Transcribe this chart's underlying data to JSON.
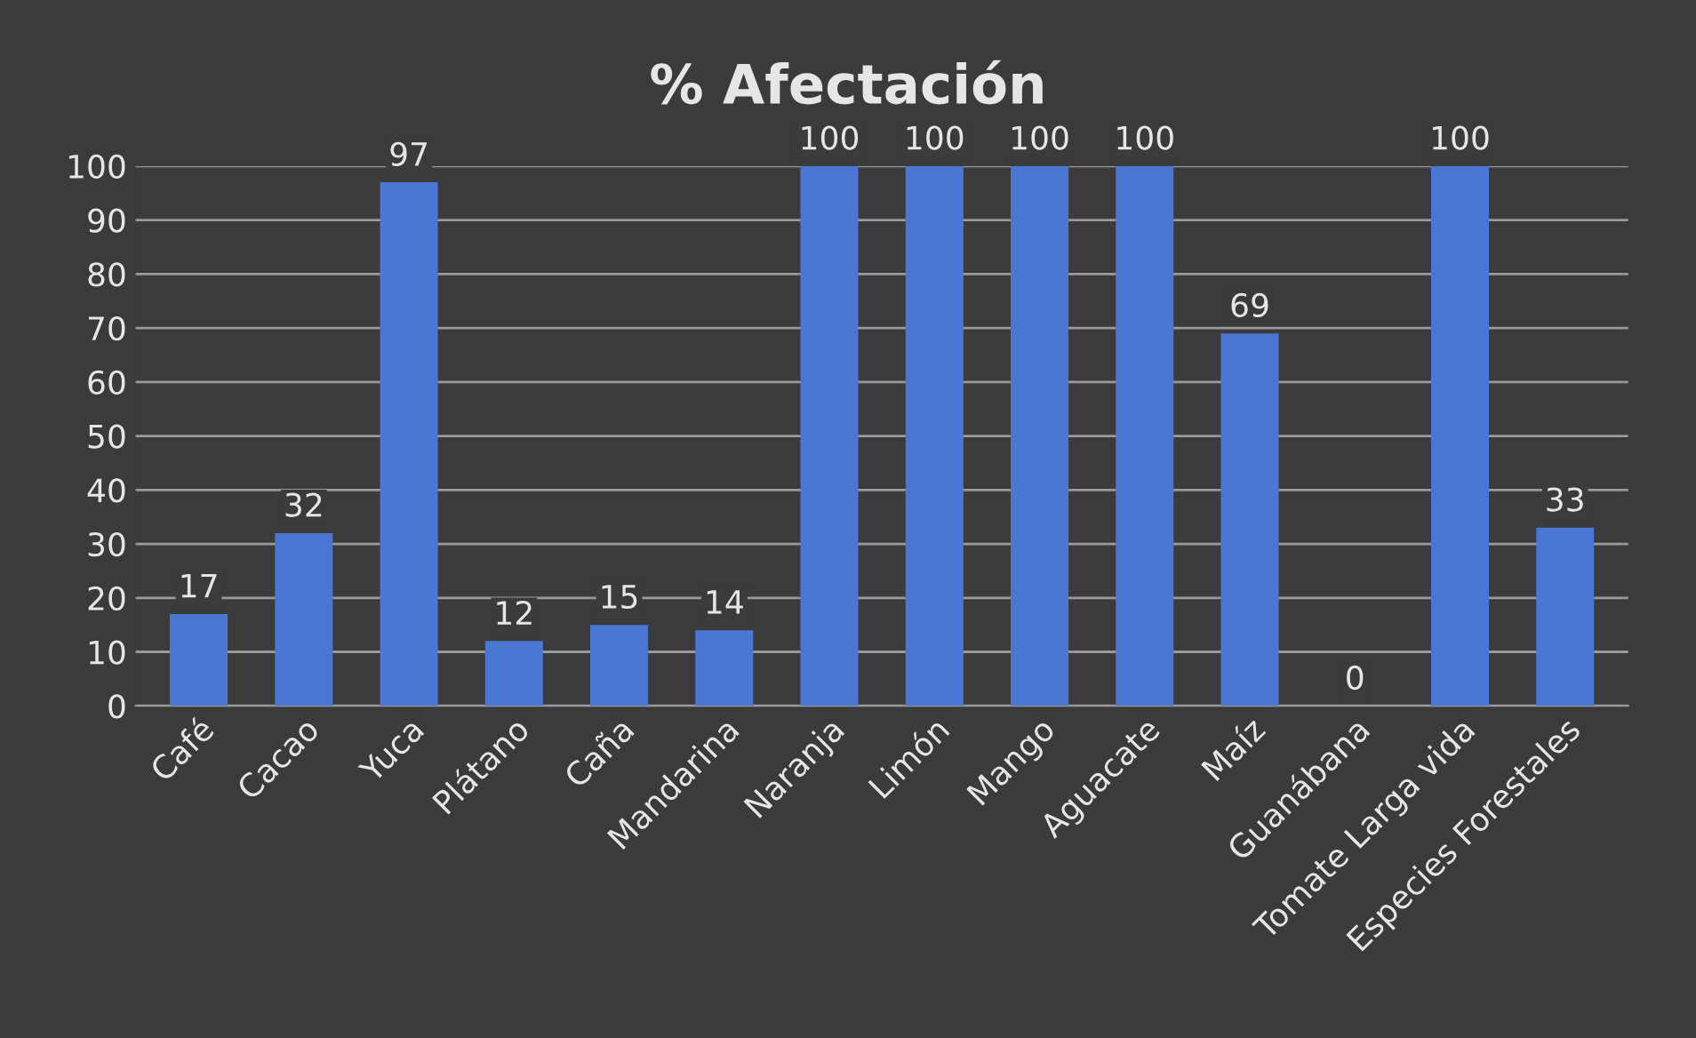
{
  "chart_data": {
    "type": "bar",
    "title": "% Afectación",
    "categories": [
      "Café",
      "Cacao",
      "Yuca",
      "Plátano",
      "Caña",
      "Mandarina",
      "Naranja",
      "Limón",
      "Mango",
      "Aguacate",
      "Maíz",
      "Guanábana",
      "Tomate Larga vida",
      "Especies Forestales"
    ],
    "values": [
      17,
      32,
      97,
      12,
      15,
      14,
      100,
      100,
      100,
      100,
      69,
      0,
      100,
      33
    ],
    "color": "#4a76d4",
    "ylim": [
      0,
      100
    ],
    "yticks": [
      0,
      10,
      20,
      30,
      40,
      50,
      60,
      70,
      80,
      90,
      100
    ],
    "grid": "y",
    "data_labels": true,
    "legend": false
  }
}
